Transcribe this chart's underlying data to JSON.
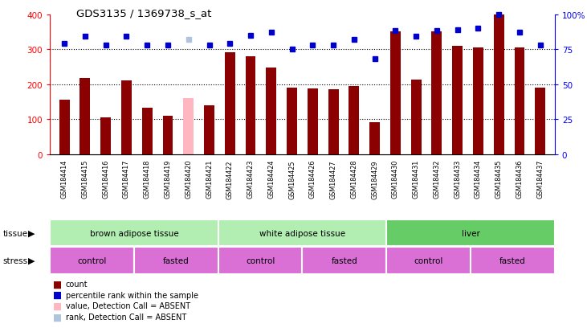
{
  "title": "GDS3135 / 1369738_s_at",
  "samples": [
    "GSM184414",
    "GSM184415",
    "GSM184416",
    "GSM184417",
    "GSM184418",
    "GSM184419",
    "GSM184420",
    "GSM184421",
    "GSM184422",
    "GSM184423",
    "GSM184424",
    "GSM184425",
    "GSM184426",
    "GSM184427",
    "GSM184428",
    "GSM184429",
    "GSM184430",
    "GSM184431",
    "GSM184432",
    "GSM184433",
    "GSM184434",
    "GSM184435",
    "GSM184436",
    "GSM184437"
  ],
  "counts": [
    155,
    217,
    105,
    210,
    133,
    110,
    160,
    140,
    290,
    280,
    248,
    190,
    187,
    185,
    195,
    90,
    350,
    213,
    350,
    310,
    305,
    400,
    305,
    190
  ],
  "absent_bar": [
    false,
    false,
    false,
    false,
    false,
    false,
    true,
    false,
    false,
    false,
    false,
    false,
    false,
    false,
    false,
    false,
    false,
    false,
    false,
    false,
    false,
    false,
    false,
    false
  ],
  "percentile": [
    79,
    84,
    78,
    84,
    78,
    78,
    82,
    78,
    79,
    85,
    87,
    75,
    78,
    78,
    82,
    68,
    88,
    84,
    88,
    89,
    90,
    100,
    87,
    78
  ],
  "absent_pct": [
    false,
    false,
    false,
    false,
    false,
    false,
    true,
    false,
    false,
    false,
    false,
    false,
    false,
    false,
    false,
    false,
    false,
    false,
    false,
    false,
    false,
    false,
    false,
    false
  ],
  "bar_color": "#8B0000",
  "bar_absent_color": "#FFB6C1",
  "dot_color": "#0000CD",
  "dot_absent_color": "#B0C4DE",
  "tissue_labels": [
    "brown adipose tissue",
    "white adipose tissue",
    "liver"
  ],
  "tissue_ranges": [
    [
      0,
      8
    ],
    [
      8,
      16
    ],
    [
      16,
      24
    ]
  ],
  "tissue_colors": [
    "#B2EEB2",
    "#B2EEB2",
    "#66CC66"
  ],
  "stress_labels": [
    "control",
    "fasted",
    "control",
    "fasted",
    "control",
    "fasted"
  ],
  "stress_ranges": [
    [
      0,
      4
    ],
    [
      4,
      8
    ],
    [
      8,
      12
    ],
    [
      12,
      16
    ],
    [
      16,
      20
    ],
    [
      20,
      24
    ]
  ],
  "stress_color": "#DA70D6",
  "ylim": [
    0,
    400
  ],
  "yticks": [
    0,
    100,
    200,
    300,
    400
  ],
  "right_yticks": [
    0,
    25,
    50,
    75,
    100
  ],
  "right_yticklabels": [
    "0",
    "25",
    "50",
    "75",
    "100%"
  ],
  "xlabel_bg": "#C8C8C8"
}
